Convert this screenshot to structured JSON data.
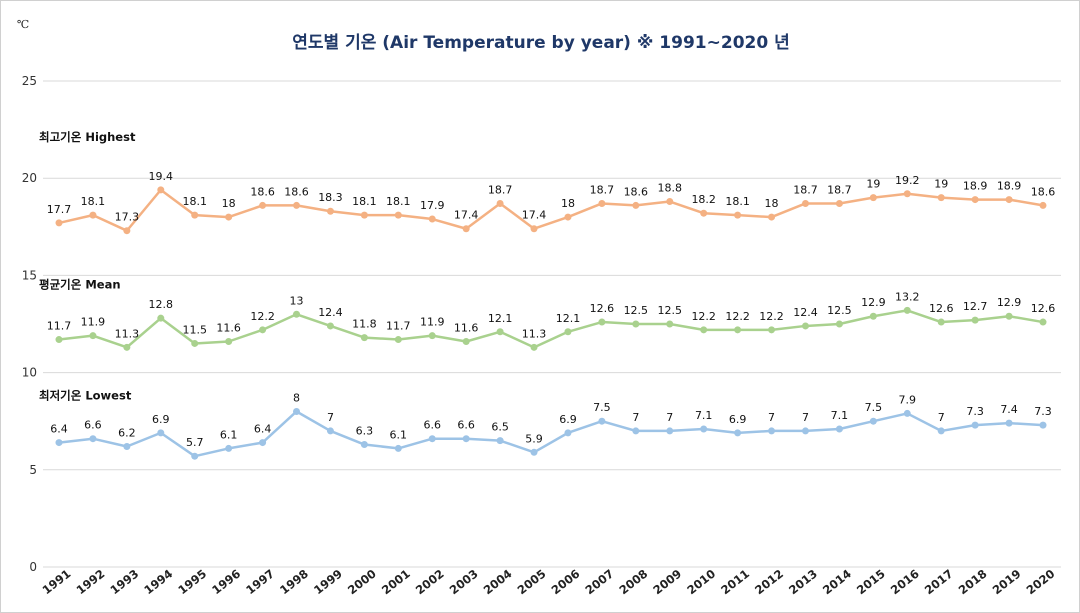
{
  "chart_data": {
    "type": "line",
    "title": "연도별 기온  (Air Temperature by year) ※ 1991~2020 년",
    "unit": "℃",
    "ylim": [
      0,
      25
    ],
    "yticks": [
      0,
      5,
      10,
      15,
      20,
      25
    ],
    "grid": true,
    "categories": [
      "1991",
      "1992",
      "1993",
      "1994",
      "1995",
      "1996",
      "1997",
      "1998",
      "1999",
      "2000",
      "2001",
      "2002",
      "2003",
      "2004",
      "2005",
      "2006",
      "2007",
      "2008",
      "2009",
      "2010",
      "2011",
      "2012",
      "2013",
      "2014",
      "2015",
      "2016",
      "2017",
      "2018",
      "2019",
      "2020"
    ],
    "series": [
      {
        "name": "최고기온 Highest",
        "color": "#f4b183",
        "values": [
          17.7,
          18.1,
          17.3,
          19.4,
          18.1,
          18,
          18.6,
          18.6,
          18.3,
          18.1,
          18.1,
          17.9,
          17.4,
          18.7,
          17.4,
          18,
          18.7,
          18.6,
          18.8,
          18.2,
          18.1,
          18,
          18.7,
          18.7,
          19,
          19.2,
          19,
          18.9,
          18.9,
          18.6
        ],
        "labels": [
          "17.7",
          "18.1",
          "17.3",
          "19.4",
          "18.1",
          "18",
          "18.6",
          "18.6",
          "18.3",
          "18.1",
          "18.1",
          "17.9",
          "17.4",
          "18.7",
          "17.4",
          "18",
          "18.7",
          "18.6",
          "18.8",
          "18.2",
          "18.1",
          "18",
          "18.7",
          "18.7",
          "19",
          "19.2",
          "19",
          "18.9",
          "18.9",
          "18.6"
        ]
      },
      {
        "name": "평균기온 Mean",
        "color": "#a9d18e",
        "values": [
          11.7,
          11.9,
          11.3,
          12.8,
          11.5,
          11.6,
          12.2,
          13,
          12.4,
          11.8,
          11.7,
          11.9,
          11.6,
          12.1,
          11.3,
          12.1,
          12.6,
          12.5,
          12.5,
          12.2,
          12.2,
          12.2,
          12.4,
          12.5,
          12.9,
          13.2,
          12.6,
          12.7,
          12.9,
          12.6
        ],
        "labels": [
          "11.7",
          "11.9",
          "11.3",
          "12.8",
          "11.5",
          "11.6",
          "12.2",
          "13",
          "12.4",
          "11.8",
          "11.7",
          "11.9",
          "11.6",
          "12.1",
          "11.3",
          "12.1",
          "12.6",
          "12.5",
          "12.5",
          "12.2",
          "12.2",
          "12.2",
          "12.4",
          "12.5",
          "12.9",
          "13.2",
          "12.6",
          "12.7",
          "12.9",
          "12.6"
        ]
      },
      {
        "name": "최저기온 Lowest",
        "color": "#9dc3e6",
        "values": [
          6.4,
          6.6,
          6.2,
          6.9,
          5.7,
          6.1,
          6.4,
          8,
          7,
          6.3,
          6.1,
          6.6,
          6.6,
          6.5,
          5.9,
          6.9,
          7.5,
          7,
          7,
          7.1,
          6.9,
          7,
          7,
          7.1,
          7.5,
          7.9,
          7,
          7.3,
          7.4,
          7.3
        ],
        "labels": [
          "6.4",
          "6.6",
          "6.2",
          "6.9",
          "5.7",
          "6.1",
          "6.4",
          "8",
          "7",
          "6.3",
          "6.1",
          "6.6",
          "6.6",
          "6.5",
          "5.9",
          "6.9",
          "7.5",
          "7",
          "7",
          "7.1",
          "6.9",
          "7",
          "7",
          "7.1",
          "7.5",
          "7.9",
          "7",
          "7.3",
          "7.4",
          "7.3"
        ]
      }
    ]
  }
}
